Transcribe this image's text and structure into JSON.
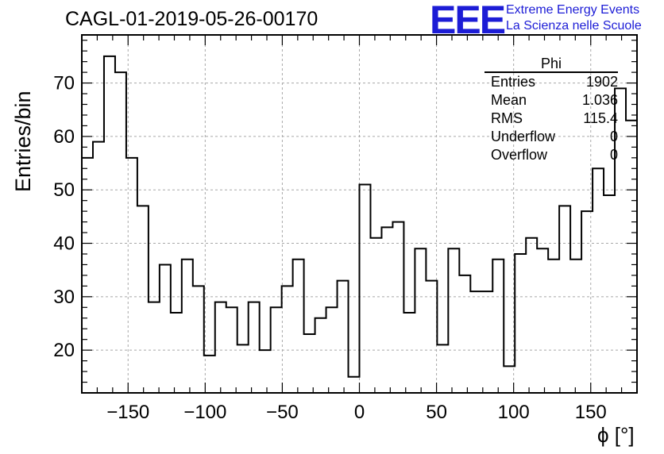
{
  "title": "CAGL-01-2019-05-26-00170",
  "logo": {
    "mark": "EEE",
    "line1": "Extreme Energy Events",
    "line2": "La Scienza nelle Scuole",
    "color": "#1c1cd6"
  },
  "stats": {
    "name": "Phi",
    "rows": [
      {
        "label": "Entries",
        "value": "1902"
      },
      {
        "label": "Mean",
        "value": "1.036"
      },
      {
        "label": "RMS",
        "value": "115.4"
      },
      {
        "label": "Underflow",
        "value": "0"
      },
      {
        "label": "Overflow",
        "value": "0"
      }
    ]
  },
  "chart_data": {
    "type": "bar",
    "xlabel": "ϕ [°]",
    "ylabel": "Entries/bin",
    "xlim": [
      -180,
      180
    ],
    "ylim": [
      12,
      79
    ],
    "bin_width": 7.2,
    "x_ticks": [
      -150,
      -100,
      -50,
      0,
      50,
      100,
      150
    ],
    "x_tick_labels": [
      "−150",
      "−100",
      "−50",
      "0",
      "50",
      "100",
      "150"
    ],
    "y_ticks": [
      20,
      30,
      40,
      50,
      60,
      70
    ],
    "y_tick_labels": [
      "20",
      "30",
      "40",
      "50",
      "60",
      "70"
    ],
    "grid": true,
    "legend": "top-right",
    "line_color": "#000000",
    "grid_color": "#a8a8a8",
    "values": [
      56,
      59,
      75,
      72,
      56,
      47,
      29,
      36,
      27,
      37,
      32,
      19,
      29,
      28,
      21,
      29,
      20,
      28,
      32,
      37,
      23,
      26,
      28,
      33,
      15,
      51,
      41,
      43,
      44,
      27,
      39,
      33,
      21,
      39,
      34,
      31,
      31,
      37,
      17,
      38,
      41,
      39,
      37,
      47,
      37,
      46,
      54,
      49,
      69,
      63
    ]
  }
}
